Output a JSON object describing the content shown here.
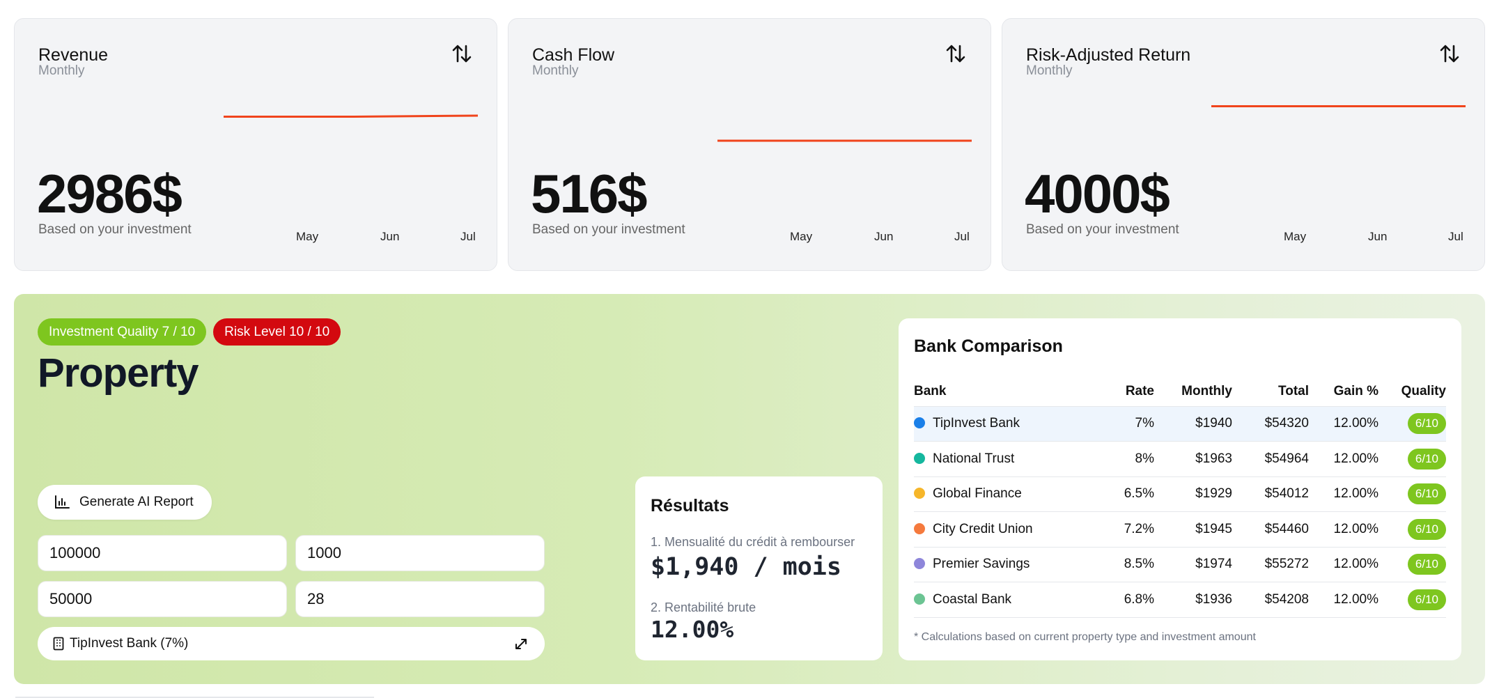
{
  "cards": [
    {
      "title": "Revenue",
      "subtitle": "Monthly",
      "value": "2986$",
      "caption": "Based on your investment",
      "months": [
        "May",
        "Jun",
        "Jul"
      ],
      "trend": [
        0.73,
        0.73,
        0.74
      ]
    },
    {
      "title": "Cash Flow",
      "subtitle": "Monthly",
      "value": "516$",
      "caption": "Based on your investment",
      "months": [
        "May",
        "Jun",
        "Jul"
      ],
      "trend": [
        0.5,
        0.5,
        0.5
      ]
    },
    {
      "title": "Risk-Adjusted Return",
      "subtitle": "Monthly",
      "value": "4000$",
      "caption": "Based on your investment",
      "months": [
        "May",
        "Jun",
        "Jul"
      ],
      "trend": [
        0.83,
        0.83,
        0.83
      ]
    }
  ],
  "colors": {
    "trend_line": "#f0441c",
    "quality_badge": "#7ec61f",
    "risk_badge": "#d3090f"
  },
  "property": {
    "quality_badge": "Investment Quality 7 / 10",
    "risk_badge": "Risk Level 10 / 10",
    "title": "Property",
    "generate_label": "Generate AI Report",
    "inputs": [
      "100000",
      "1000",
      "50000",
      "28"
    ],
    "bank_select": "TipInvest Bank (7%)"
  },
  "results": {
    "title": "Résultats",
    "label1": "1. Mensualité du crédit à rembourser",
    "value1": "$1,940 / mois",
    "label2": "2. Rentabilité brute",
    "value2": "12.00%"
  },
  "bank_comparison": {
    "title": "Bank Comparison",
    "headers": [
      "Bank",
      "Rate",
      "Monthly",
      "Total",
      "Gain %",
      "Quality"
    ],
    "rows": [
      {
        "bank": "TipInvest Bank",
        "color": "#1a7fe8",
        "rate": "7%",
        "monthly": "$1940",
        "total": "$54320",
        "gain": "12.00%",
        "quality": "6/10"
      },
      {
        "bank": "National Trust",
        "color": "#15b79e",
        "rate": "8%",
        "monthly": "$1963",
        "total": "$54964",
        "gain": "12.00%",
        "quality": "6/10"
      },
      {
        "bank": "Global Finance",
        "color": "#f6b62a",
        "rate": "6.5%",
        "monthly": "$1929",
        "total": "$54012",
        "gain": "12.00%",
        "quality": "6/10"
      },
      {
        "bank": "City Credit Union",
        "color": "#f57a3d",
        "rate": "7.2%",
        "monthly": "$1945",
        "total": "$54460",
        "gain": "12.00%",
        "quality": "6/10"
      },
      {
        "bank": "Premier Savings",
        "color": "#8e86da",
        "rate": "8.5%",
        "monthly": "$1974",
        "total": "$55272",
        "gain": "12.00%",
        "quality": "6/10"
      },
      {
        "bank": "Coastal Bank",
        "color": "#6cc493",
        "rate": "6.8%",
        "monthly": "$1936",
        "total": "$54208",
        "gain": "12.00%",
        "quality": "6/10"
      }
    ],
    "note": "* Calculations based on current property type and investment amount"
  }
}
